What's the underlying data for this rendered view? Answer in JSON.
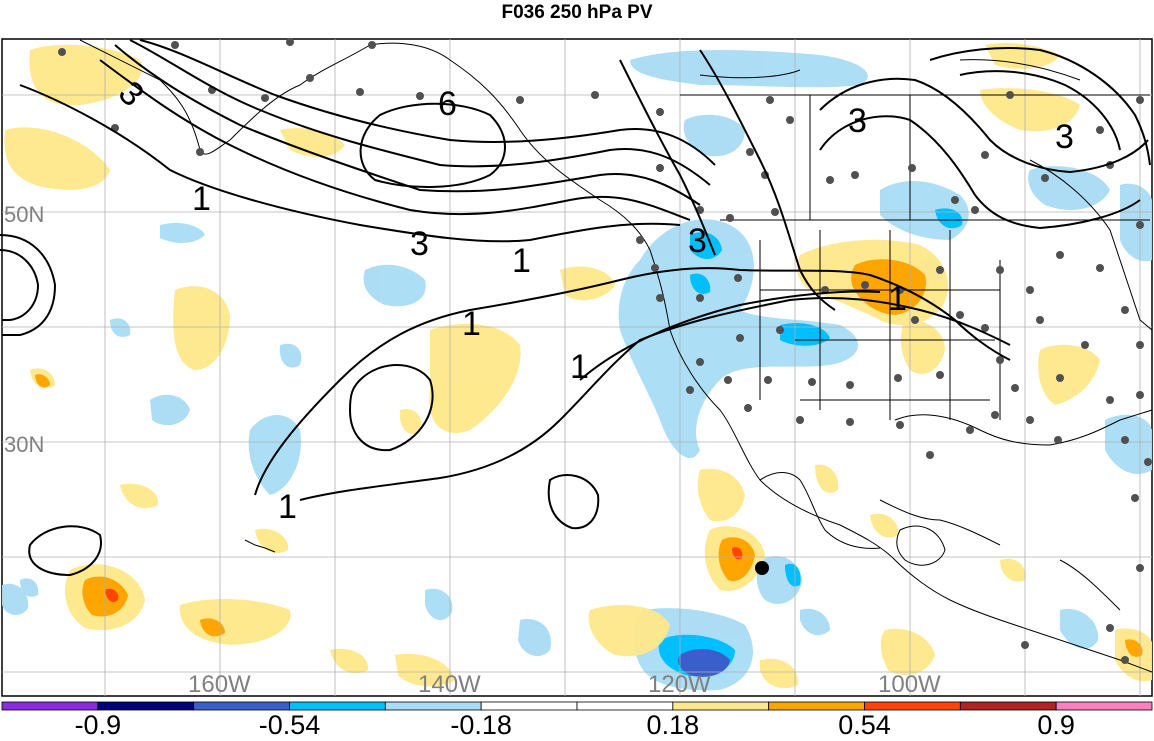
{
  "title": "F036 250 hPa PV",
  "lat_labels": [
    "50N",
    "30N"
  ],
  "lon_labels": [
    "160W",
    "140W",
    "120W",
    "100W"
  ],
  "contour_labels": [
    "3",
    "6",
    "3",
    "1",
    "1",
    "1",
    "1",
    "1",
    "3",
    "3",
    "3",
    "1"
  ],
  "colorbar": {
    "colors": [
      "#8a2be2",
      "#00007f",
      "#3a5fcd",
      "#00bfff",
      "#a8dcf5",
      "#ffffff",
      "#ffffff",
      "#ffe88a",
      "#ffa500",
      "#ff4500",
      "#b22222",
      "#ff7fbf"
    ],
    "labels": [
      "-0.9",
      "-0.54",
      "-0.18",
      "0.18",
      "0.54",
      "0.9"
    ]
  },
  "colors": {
    "negative_light": "#a8dcf5",
    "negative_mid": "#00bfff",
    "negative_strong": "#3a5fcd",
    "positive_light": "#ffe88a",
    "positive_mid": "#ffa500",
    "positive_strong": "#ff4500"
  }
}
